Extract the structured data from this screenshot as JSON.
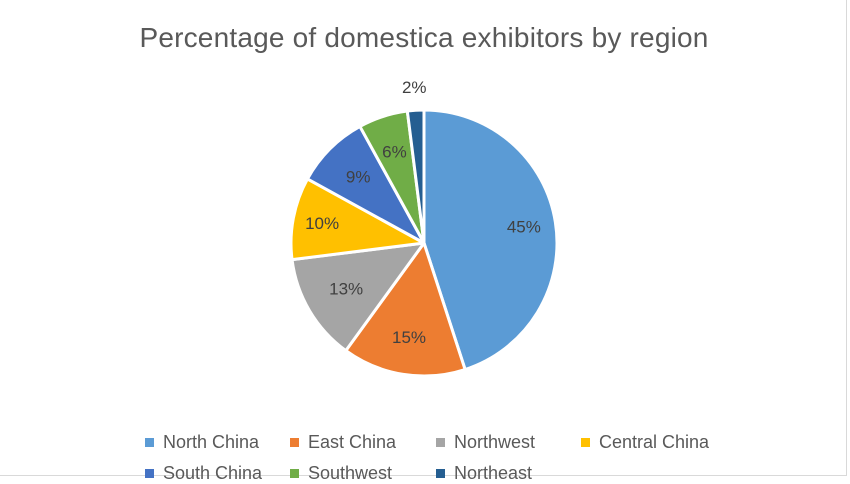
{
  "chart_data": {
    "type": "pie",
    "title": "Percentage of domestica exhibitors by region",
    "labels": [
      "North China",
      "East China",
      "Northwest",
      "Central China",
      "South China",
      "Southwest",
      "Northeast"
    ],
    "values": [
      45,
      15,
      13,
      10,
      9,
      6,
      2
    ],
    "data_labels": [
      "45%",
      "15%",
      "13%",
      "10%",
      "9%",
      "6%",
      "2%"
    ],
    "colors": [
      "#5b9bd5",
      "#ed7d31",
      "#a5a5a5",
      "#ffc000",
      "#4472c4",
      "#70ad47",
      "#255e91"
    ],
    "legend_position": "bottom"
  }
}
